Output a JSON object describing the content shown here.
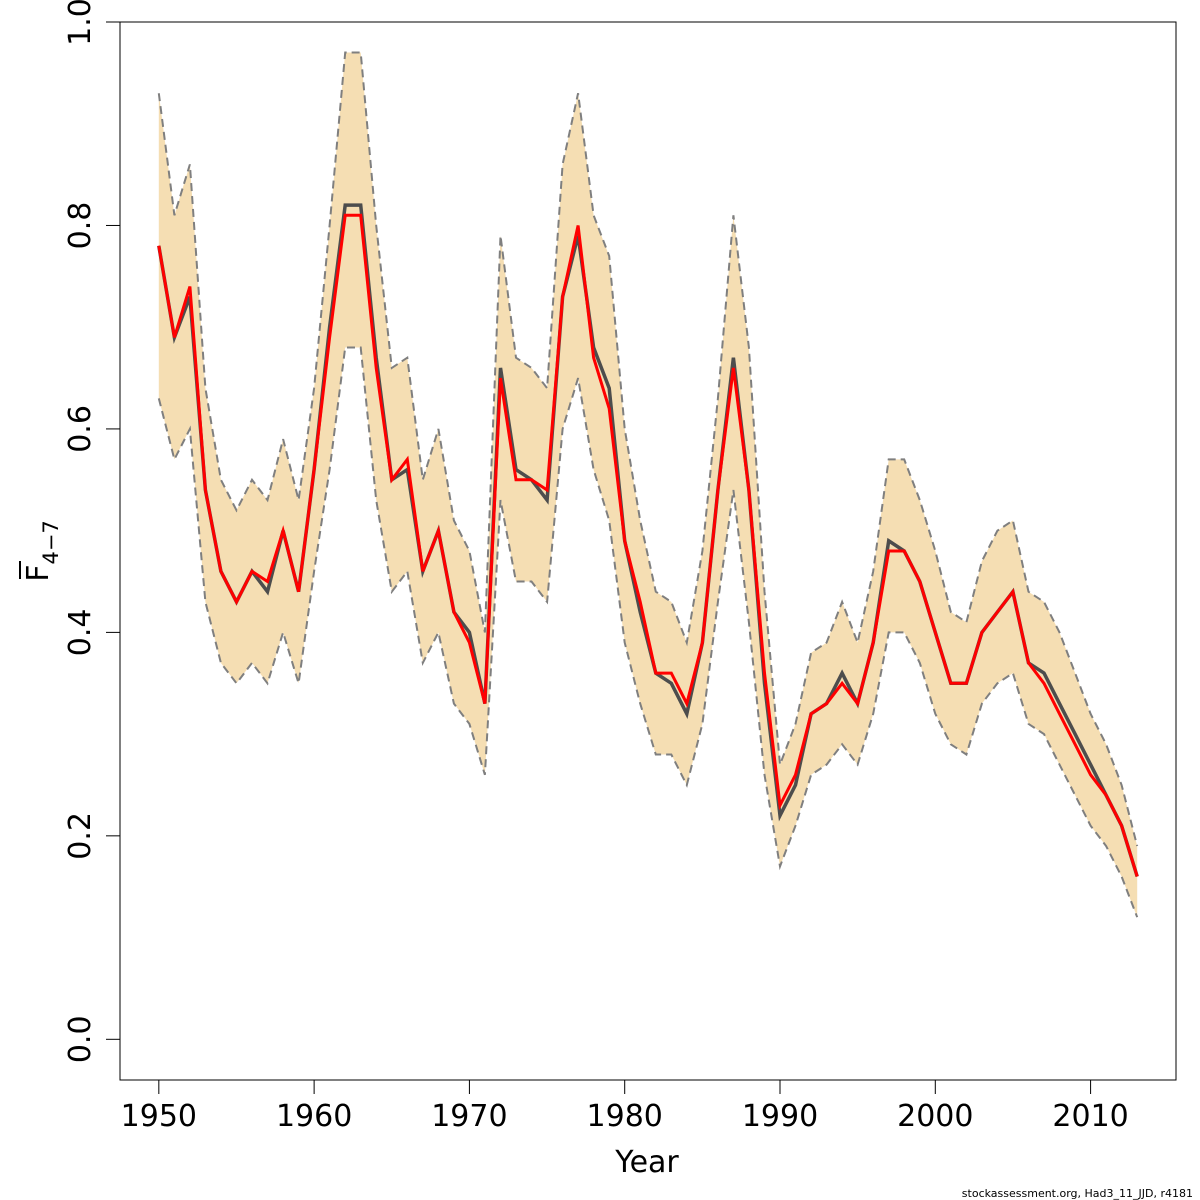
{
  "chart_data": {
    "type": "line",
    "xlabel": "Year",
    "ylabel_main": "F",
    "ylabel_sub": "4−7",
    "footer": "stockassessment.org, Had3_11_JJD, r4181",
    "xlim": [
      1947.5,
      2015.5
    ],
    "ylim": [
      -0.04,
      1.0
    ],
    "x_ticks": [
      1950,
      1960,
      1970,
      1980,
      1990,
      2000,
      2010
    ],
    "y_ticks": [
      0.0,
      0.2,
      0.4,
      0.6,
      0.8,
      1.0
    ],
    "y_tick_labels": [
      "0.0",
      "0.2",
      "0.4",
      "0.6",
      "0.8",
      "1.0"
    ],
    "colors": {
      "band": "#F5DEB3",
      "band_border": "#7f7f7f",
      "estimate": "#4d4d4d",
      "red_line": "#ff0000"
    },
    "x": [
      1950,
      1951,
      1952,
      1953,
      1954,
      1955,
      1956,
      1957,
      1958,
      1959,
      1960,
      1961,
      1962,
      1963,
      1964,
      1965,
      1966,
      1967,
      1968,
      1969,
      1970,
      1971,
      1972,
      1973,
      1974,
      1975,
      1976,
      1977,
      1978,
      1979,
      1980,
      1981,
      1982,
      1983,
      1984,
      1985,
      1986,
      1987,
      1988,
      1989,
      1990,
      1991,
      1992,
      1993,
      1994,
      1995,
      1996,
      1997,
      1998,
      1999,
      2000,
      2001,
      2002,
      2003,
      2004,
      2005,
      2006,
      2007,
      2008,
      2009,
      2010,
      2011,
      2012,
      2013
    ],
    "series": [
      {
        "role": "upper",
        "values": [
          0.93,
          0.81,
          0.86,
          0.64,
          0.55,
          0.52,
          0.55,
          0.53,
          0.59,
          0.53,
          0.64,
          0.8,
          0.97,
          0.97,
          0.8,
          0.66,
          0.67,
          0.55,
          0.6,
          0.51,
          0.48,
          0.4,
          0.79,
          0.67,
          0.66,
          0.64,
          0.86,
          0.93,
          0.81,
          0.77,
          0.6,
          0.51,
          0.44,
          0.43,
          0.39,
          0.48,
          0.63,
          0.81,
          0.68,
          0.44,
          0.27,
          0.31,
          0.38,
          0.39,
          0.43,
          0.39,
          0.46,
          0.57,
          0.57,
          0.53,
          0.48,
          0.42,
          0.41,
          0.47,
          0.5,
          0.51,
          0.44,
          0.43,
          0.4,
          0.36,
          0.32,
          0.29,
          0.25,
          0.19
        ]
      },
      {
        "role": "lower",
        "values": [
          0.63,
          0.57,
          0.6,
          0.43,
          0.37,
          0.35,
          0.37,
          0.35,
          0.4,
          0.35,
          0.46,
          0.56,
          0.68,
          0.68,
          0.53,
          0.44,
          0.46,
          0.37,
          0.4,
          0.33,
          0.31,
          0.26,
          0.53,
          0.45,
          0.45,
          0.43,
          0.6,
          0.65,
          0.56,
          0.51,
          0.39,
          0.33,
          0.28,
          0.28,
          0.25,
          0.31,
          0.43,
          0.54,
          0.41,
          0.26,
          0.17,
          0.21,
          0.26,
          0.27,
          0.29,
          0.27,
          0.32,
          0.4,
          0.4,
          0.37,
          0.32,
          0.29,
          0.28,
          0.33,
          0.35,
          0.36,
          0.31,
          0.3,
          0.27,
          0.24,
          0.21,
          0.19,
          0.16,
          0.12
        ]
      },
      {
        "role": "estimate",
        "values": [
          0.78,
          0.69,
          0.73,
          0.54,
          0.46,
          0.43,
          0.46,
          0.44,
          0.5,
          0.44,
          0.56,
          0.7,
          0.82,
          0.82,
          0.67,
          0.55,
          0.56,
          0.46,
          0.5,
          0.42,
          0.4,
          0.33,
          0.66,
          0.56,
          0.55,
          0.53,
          0.73,
          0.79,
          0.68,
          0.64,
          0.49,
          0.42,
          0.36,
          0.35,
          0.32,
          0.39,
          0.54,
          0.67,
          0.54,
          0.35,
          0.22,
          0.25,
          0.32,
          0.33,
          0.36,
          0.33,
          0.39,
          0.49,
          0.48,
          0.45,
          0.4,
          0.35,
          0.35,
          0.4,
          0.42,
          0.44,
          0.37,
          0.36,
          0.33,
          0.3,
          0.27,
          0.24,
          0.21,
          0.16
        ]
      },
      {
        "role": "red_line",
        "values": [
          0.78,
          0.69,
          0.74,
          0.54,
          0.46,
          0.43,
          0.46,
          0.45,
          0.5,
          0.44,
          0.56,
          0.69,
          0.81,
          0.81,
          0.66,
          0.55,
          0.57,
          0.46,
          0.5,
          0.42,
          0.39,
          0.33,
          0.65,
          0.55,
          0.55,
          0.54,
          0.73,
          0.8,
          0.67,
          0.62,
          0.49,
          0.43,
          0.36,
          0.36,
          0.33,
          0.39,
          0.54,
          0.66,
          0.54,
          0.36,
          0.23,
          0.26,
          0.32,
          0.33,
          0.35,
          0.33,
          0.39,
          0.48,
          0.48,
          0.45,
          0.4,
          0.35,
          0.35,
          0.4,
          0.42,
          0.44,
          0.37,
          0.35,
          0.32,
          0.29,
          0.26,
          0.24,
          0.21,
          0.16
        ]
      }
    ]
  }
}
